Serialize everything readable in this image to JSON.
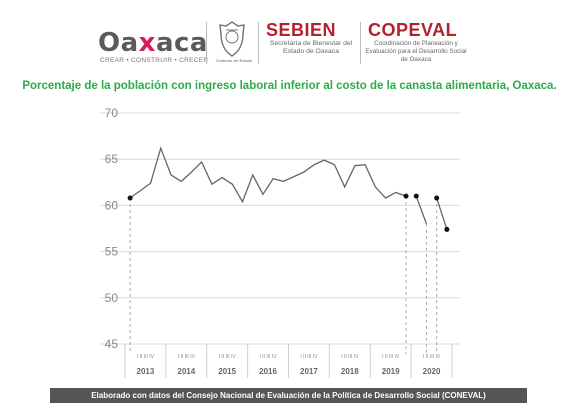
{
  "header": {
    "oaxaca_logo_text": "Oaxaca",
    "oaxaca_tagline": "CREAR • CONSTRUIR • CRECER",
    "seal_caption": "Gobierno del Estado",
    "sebien_title": "SEBIEN",
    "sebien_subtitle": "Secretaría de Bienestar del Estado de Oaxaca",
    "copeval_title": "COPEVAL",
    "copeval_subtitle": "Coordinación de Planeación y Evaluación para el Desarrollo Social de Oaxaca",
    "colors": {
      "oaxaca_text": "#5a5a5a",
      "oaxaca_x": "#d81b60",
      "brand_red": "#b3212f"
    }
  },
  "chart_data": {
    "type": "line",
    "title": "Porcentaje de la población con ingreso laboral inferior al costo de la canasta alimentaria, Oaxaca.",
    "ylim": [
      45,
      70
    ],
    "yticks": [
      "45",
      "50",
      "55",
      "60",
      "65",
      "70"
    ],
    "quarter_labels": [
      "I II III IV",
      "I II III IV",
      "I II III IV",
      "I II III IV",
      "I II III IV",
      "I II III IV",
      "I II III IV",
      "I II III IV"
    ],
    "year_labels": [
      "2013",
      "2014",
      "2015",
      "2016",
      "2017",
      "2018",
      "2019",
      "2020"
    ],
    "grid": true,
    "line_color": "#666666",
    "series": [
      {
        "segment": "2013Q1-2019Q4",
        "values": [
          60.8,
          61.6,
          62.4,
          66.2,
          63.3,
          62.6,
          63.6,
          64.7,
          62.3,
          63.0,
          62.3,
          60.4,
          63.3,
          61.2,
          62.9,
          62.6,
          63.1,
          63.6,
          64.4,
          64.9,
          64.4,
          62.0,
          64.3,
          64.4,
          62.0,
          60.8,
          61.4,
          61.0
        ]
      },
      {
        "segment": "2020Q1",
        "values": [
          61.0,
          58.0
        ]
      },
      {
        "segment": "2020Q3",
        "values": [
          60.8,
          57.4
        ]
      }
    ]
  },
  "footer": {
    "text": "Elaborado con datos del Consejo Nacional de Evaluación de la Política de Desarrollo Social (CONEVAL)"
  }
}
